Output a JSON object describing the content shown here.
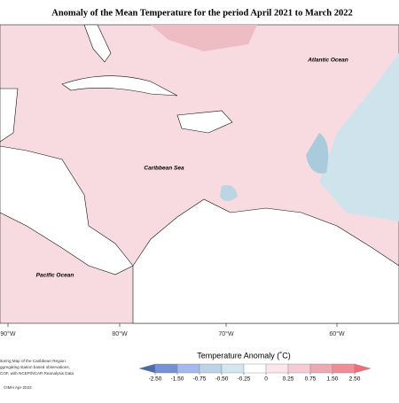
{
  "title": "Anomaly of the Mean Temperature for the period April 2021 to March 2022",
  "ocean_labels": [
    "Atlantic Ocean",
    "Caribbean Sea",
    "Pacific Ocean"
  ],
  "longitudes": [
    "90°W",
    "80°W",
    "70°W",
    "60°W"
  ],
  "legend": {
    "title": "Temperature Anomaly (˚C)",
    "ticks": [
      {
        "value": -2.5,
        "label": "-2.50"
      },
      {
        "value": -1.5,
        "label": "-1.50"
      },
      {
        "value": -0.75,
        "label": "-0.75"
      },
      {
        "value": -0.5,
        "label": "-0.50"
      },
      {
        "value": -0.25,
        "label": "-0.25"
      },
      0,
      {
        "value": 0.25,
        "label": "0.25"
      },
      {
        "value": 0.75,
        "label": "0.75"
      },
      {
        "value": 1.5,
        "label": "1.50"
      },
      {
        "value": 2.5,
        "label": "2.50"
      }
    ],
    "colors": [
      "#4f69ad",
      "#7690d6",
      "#a3b8ec",
      "#bcd2e8",
      "#d3e6ee",
      "#ffffff",
      "#fbe6e9",
      "#f5ccd3",
      "#eda8b1",
      "#f08d98",
      "#f26d7b"
    ]
  },
  "notes": [
    "itoring Map of the Caribbean Region.",
    "ggregating station based observations,",
    "COF, with NCEP/NCAR Reanalysis Data"
  ],
  "credit": "©IMH Apr-2022"
}
